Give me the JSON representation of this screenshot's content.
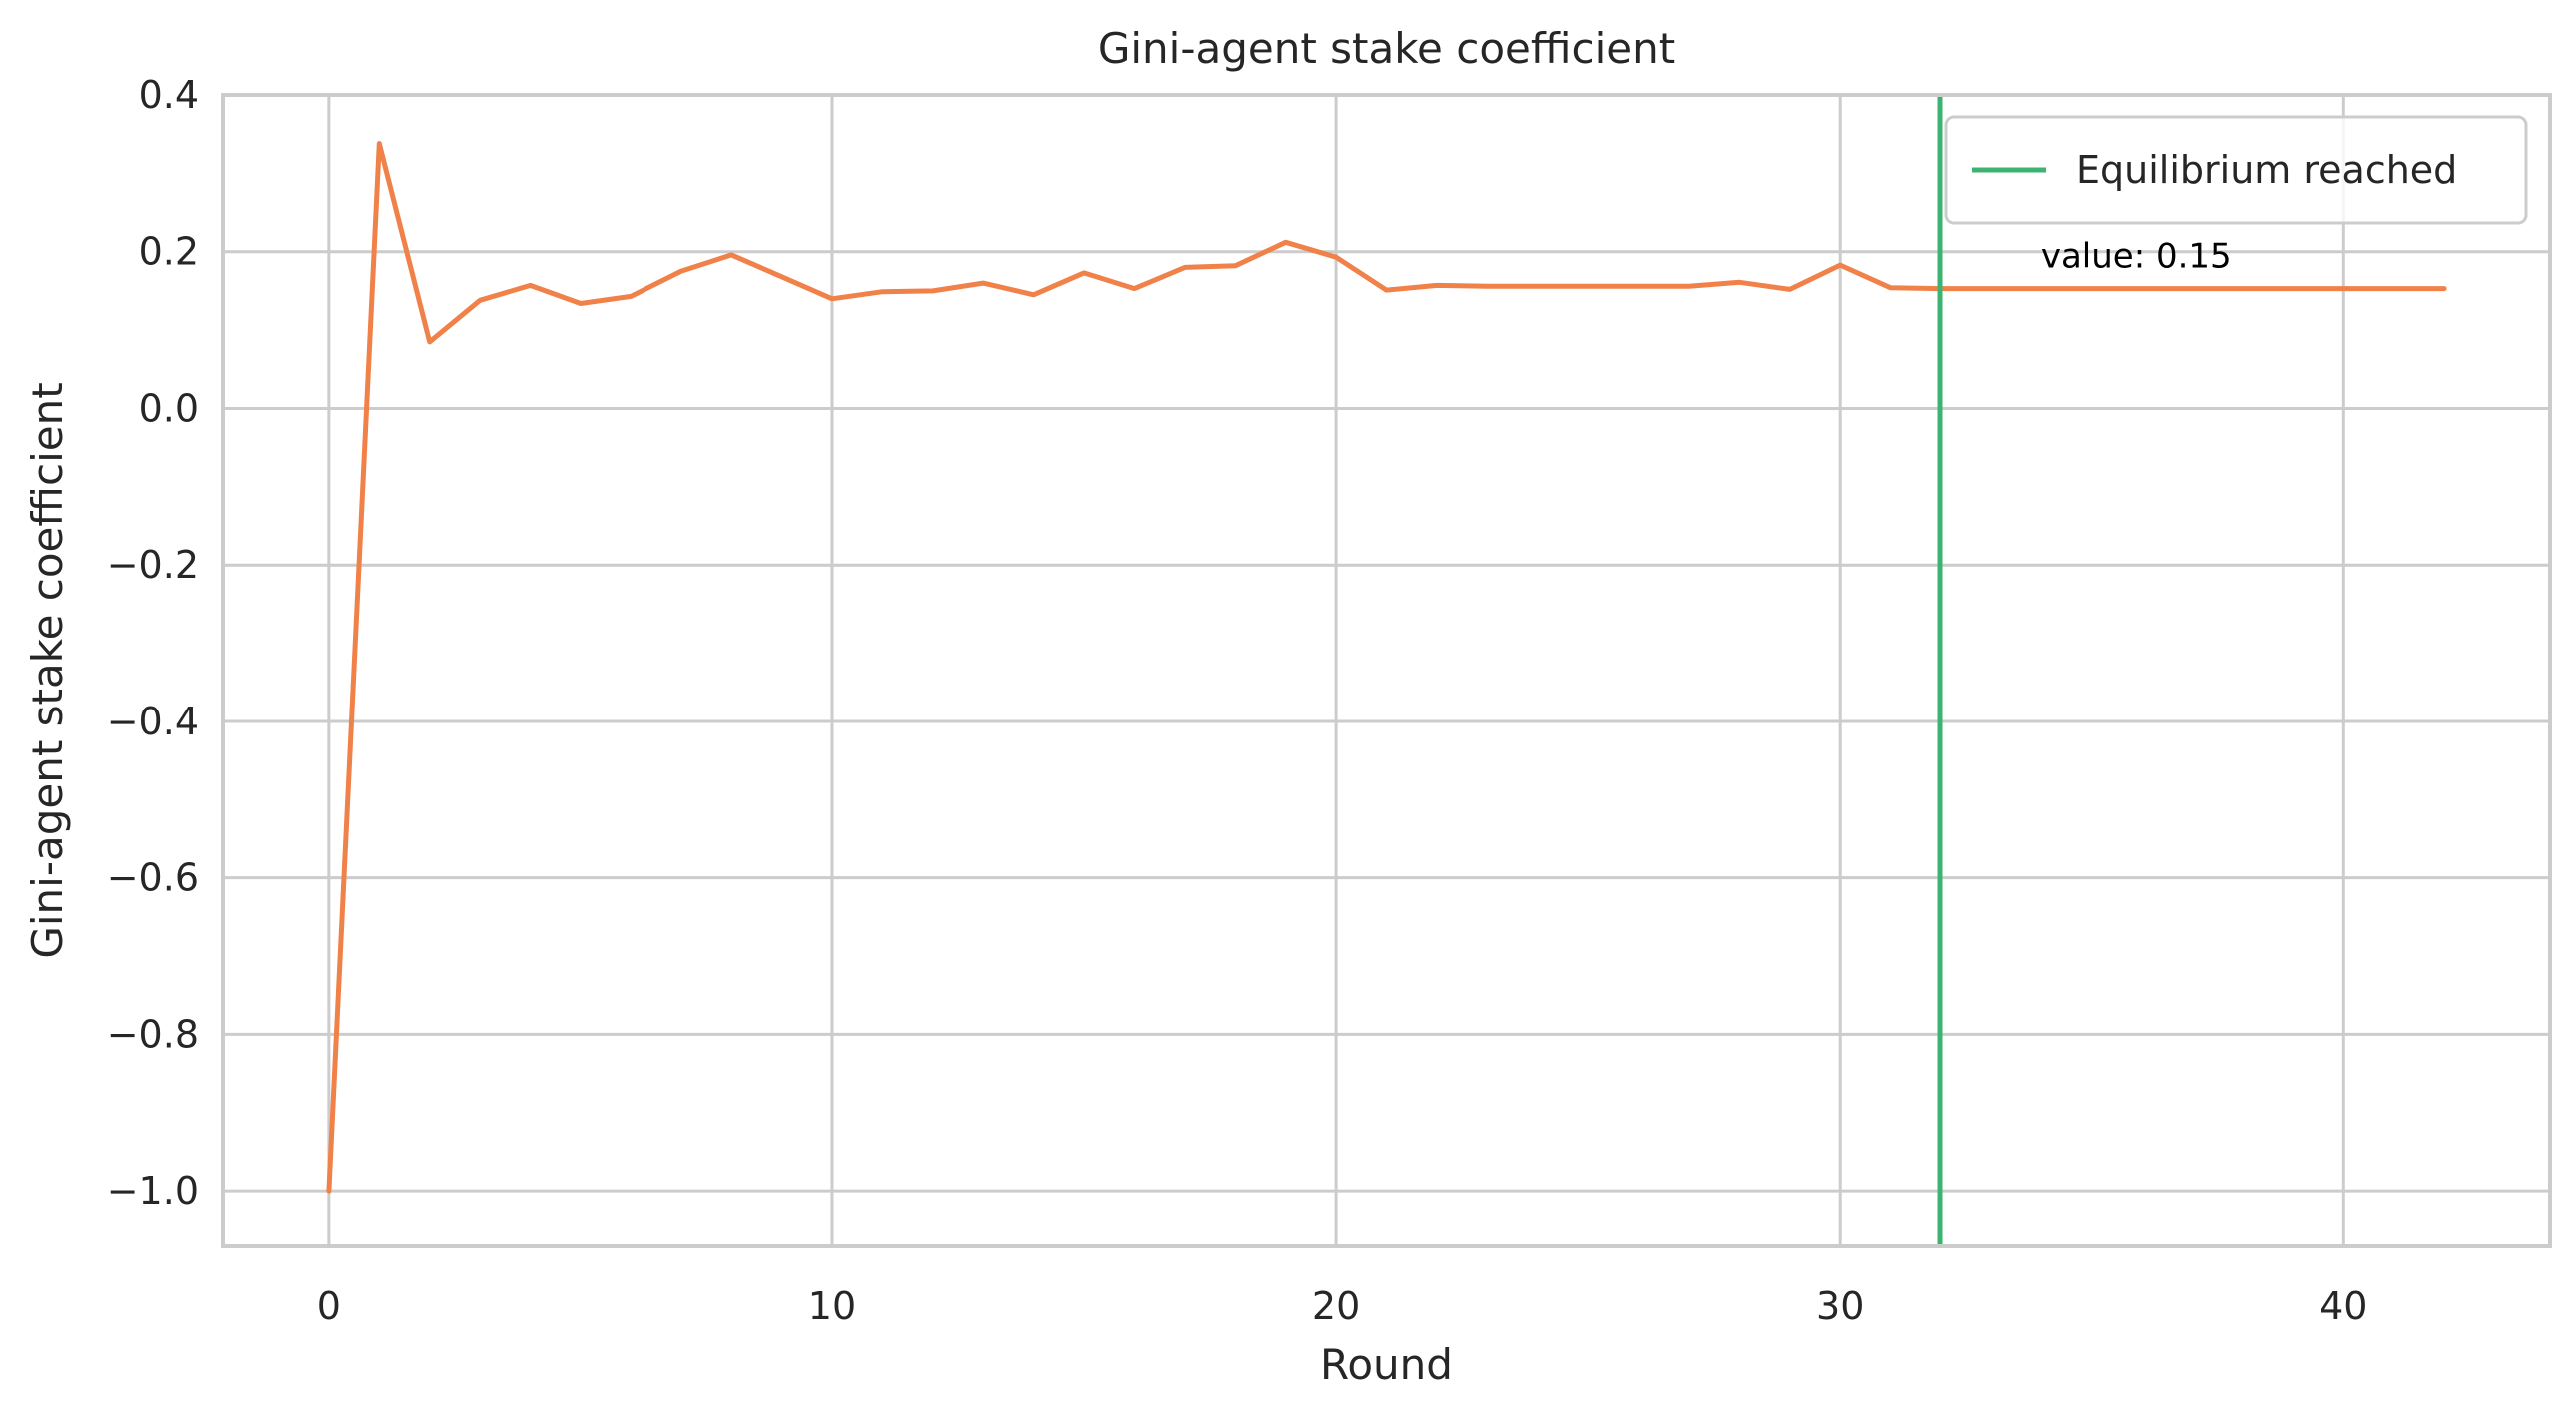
{
  "chart_data": {
    "type": "line",
    "title": "Gini-agent stake coefficient",
    "xlabel": "Round",
    "ylabel": "Gini-agent stake coefficient",
    "xlim": [
      -2.1,
      44.1
    ],
    "ylim": [
      -1.07,
      0.4
    ],
    "xticks": [
      0,
      10,
      20,
      30,
      40
    ],
    "xtick_labels": [
      "0",
      "10",
      "20",
      "30",
      "40"
    ],
    "yticks": [
      0.4,
      0.2,
      0.0,
      -0.2,
      -0.4,
      -0.6,
      -0.8,
      -1.0
    ],
    "ytick_labels": [
      "0.4",
      "0.2",
      "0.0",
      "−0.2",
      "−0.4",
      "−0.6",
      "−0.8",
      "−1.0"
    ],
    "grid": true,
    "series": [
      {
        "color": "#f08149",
        "x": [
          0,
          1,
          2,
          3,
          4,
          5,
          6,
          7,
          8,
          9,
          10,
          11,
          12,
          13,
          14,
          15,
          16,
          17,
          18,
          19,
          20,
          21,
          22,
          23,
          24,
          25,
          26,
          27,
          28,
          29,
          30,
          31,
          32,
          33,
          34,
          35,
          36,
          37,
          38,
          39,
          40,
          41,
          42
        ],
        "y": [
          -1.0,
          0.338,
          0.085,
          0.138,
          0.157,
          0.134,
          0.143,
          0.175,
          0.196,
          0.168,
          0.14,
          0.149,
          0.15,
          0.16,
          0.145,
          0.173,
          0.153,
          0.18,
          0.182,
          0.212,
          0.193,
          0.151,
          0.157,
          0.156,
          0.156,
          0.156,
          0.156,
          0.156,
          0.161,
          0.152,
          0.183,
          0.154,
          0.153,
          0.153,
          0.153,
          0.153,
          0.153,
          0.153,
          0.153,
          0.153,
          0.153,
          0.153,
          0.153
        ]
      }
    ],
    "vline": {
      "x": 32,
      "color": "#3cb371",
      "label": "Equilibrium reached"
    },
    "annotation": {
      "text": "value: 0.15",
      "x": 34,
      "y": 0.15
    },
    "legend": {
      "placement": "top-right"
    },
    "colors": {
      "grid": "#cccccc",
      "spine": "#cccccc",
      "text": "#262626"
    }
  }
}
